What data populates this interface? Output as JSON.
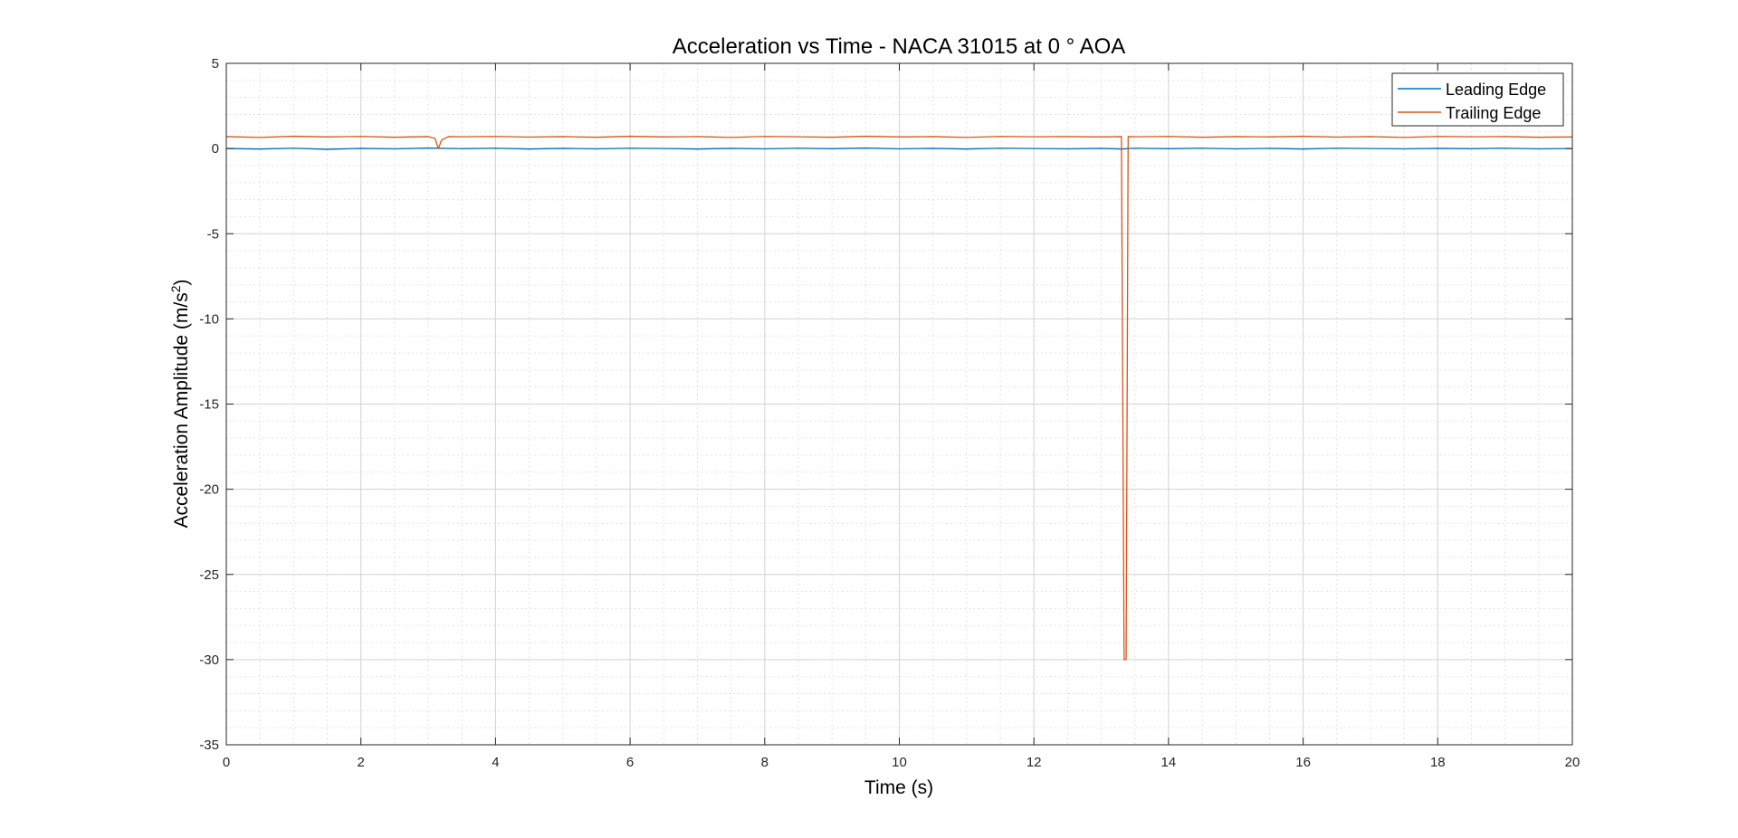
{
  "chart_data": {
    "type": "line",
    "title": "Acceleration vs Time - NACA 31015 at 0 ° AOA",
    "xlabel": "Time (s)",
    "ylabel_base": "Acceleration Amplitude (m/s",
    "ylabel_sup": "2",
    "ylabel_close": ")",
    "xlim": [
      0,
      20
    ],
    "ylim": [
      -35,
      5
    ],
    "xticks": [
      0,
      2,
      4,
      6,
      8,
      10,
      12,
      14,
      16,
      18,
      20
    ],
    "yticks": [
      5,
      0,
      -5,
      -10,
      -15,
      -20,
      -25,
      -30,
      -35
    ],
    "grid": true,
    "minor_grid": true,
    "legend_position": "top-right",
    "series": [
      {
        "name": "Leading Edge",
        "color": "#0072BD",
        "x": [
          0,
          0.5,
          1,
          1.5,
          2,
          2.5,
          3,
          3.5,
          4,
          4.5,
          5,
          5.5,
          6,
          6.5,
          7,
          7.5,
          8,
          8.5,
          9,
          9.5,
          10,
          10.5,
          11,
          11.5,
          12,
          12.5,
          13,
          13.3,
          13.5,
          14,
          14.5,
          15,
          15.5,
          16,
          16.5,
          17,
          17.5,
          18,
          18.5,
          19,
          19.5,
          20
        ],
        "y": [
          0,
          -0.03,
          0.02,
          -0.05,
          0.01,
          -0.02,
          0.03,
          -0.01,
          0.02,
          -0.03,
          0.01,
          -0.02,
          0.02,
          0,
          -0.03,
          0.01,
          -0.02,
          0.02,
          -0.01,
          0.03,
          -0.02,
          0.01,
          -0.03,
          0.02,
          0,
          -0.02,
          0.01,
          -0.03,
          0.02,
          -0.01,
          0.02,
          -0.02,
          0.01,
          -0.03,
          0.02,
          0,
          -0.02,
          0.01,
          -0.01,
          0.02,
          -0.02,
          0
        ]
      },
      {
        "name": "Trailing Edge",
        "color": "#D95319",
        "x": [
          0,
          0.5,
          1,
          1.5,
          2,
          2.5,
          3,
          3.1,
          3.15,
          3.2,
          3.3,
          3.5,
          4,
          4.5,
          5,
          5.5,
          6,
          6.5,
          7,
          7.5,
          8,
          8.5,
          9,
          9.5,
          10,
          10.5,
          11,
          11.5,
          12,
          12.5,
          13,
          13.3,
          13.34,
          13.37,
          13.4,
          13.5,
          14,
          14.5,
          15,
          15.5,
          16,
          16.5,
          17,
          17.5,
          18,
          18.5,
          19,
          19.5,
          20
        ],
        "y": [
          0.7,
          0.65,
          0.72,
          0.68,
          0.71,
          0.66,
          0.7,
          0.6,
          0,
          0.5,
          0.7,
          0.69,
          0.71,
          0.67,
          0.7,
          0.66,
          0.72,
          0.68,
          0.7,
          0.65,
          0.71,
          0.69,
          0.66,
          0.72,
          0.68,
          0.7,
          0.65,
          0.71,
          0.69,
          0.7,
          0.68,
          0.7,
          -30,
          -30,
          0.7,
          0.69,
          0.71,
          0.66,
          0.7,
          0.68,
          0.72,
          0.67,
          0.7,
          0.65,
          0.71,
          0.69,
          0.7,
          0.66,
          0.68
        ]
      }
    ]
  }
}
